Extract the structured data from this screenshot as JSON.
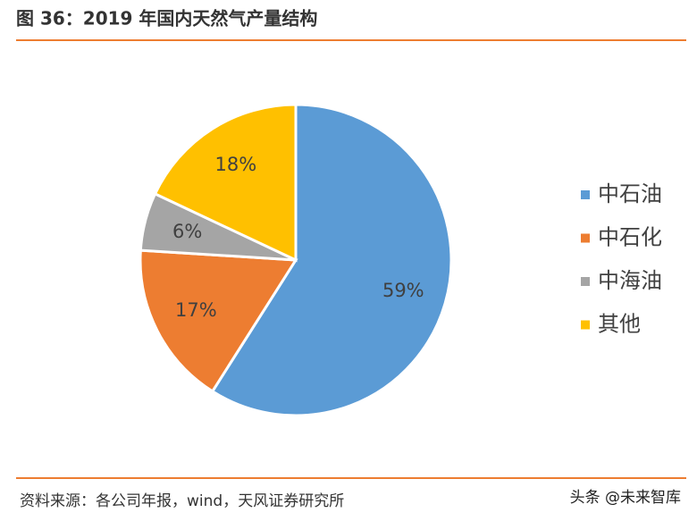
{
  "chart_data": {
    "type": "pie",
    "title": "图 36：2019 年国内天然气产量结构",
    "categories": [
      "中石油",
      "中石化",
      "中海油",
      "其他"
    ],
    "values": [
      59,
      17,
      6,
      18
    ],
    "value_labels": [
      "59%",
      "17%",
      "6%",
      "18%"
    ],
    "colors": [
      "#5b9bd5",
      "#ed7d31",
      "#a5a5a5",
      "#ffc000"
    ],
    "legend": "right",
    "source": "资料来源：各公司年报，wind，天风证券研究所",
    "watermark": "头条 @未来智库"
  }
}
